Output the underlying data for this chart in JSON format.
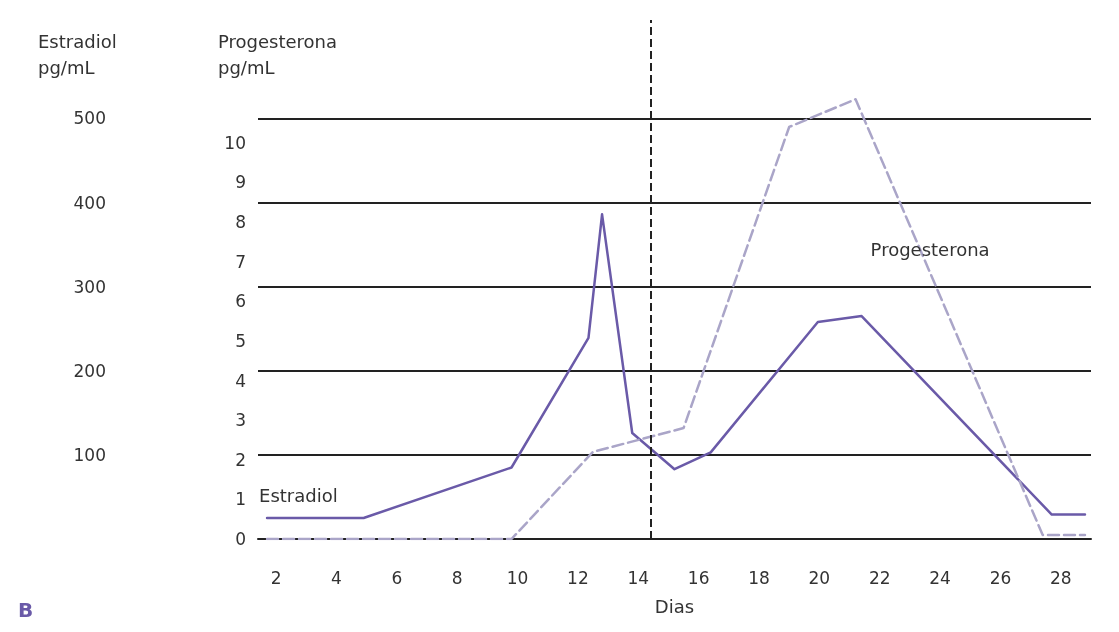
{
  "chart_data": {
    "type": "line",
    "xlabel": "Dias",
    "ylabel": "Estradiol\npg/mL",
    "y2label": "Progesterona\npg/mL",
    "xlim": [
      1.4,
      29
    ],
    "xticks": [
      2,
      4,
      6,
      8,
      10,
      12,
      14,
      16,
      18,
      20,
      22,
      24,
      26,
      28
    ],
    "ylim": [
      0,
      617
    ],
    "yticks": [
      100,
      200,
      300,
      400,
      500
    ],
    "y2lim": [
      0,
      13.1
    ],
    "y2ticks": [
      0,
      1,
      2,
      3,
      4,
      5,
      6,
      7,
      8,
      9,
      10
    ],
    "grid": "y",
    "marker": "none",
    "series": [
      {
        "name": "Estradiol",
        "color": "#6a5aa8",
        "line_style": "solid",
        "x": [
          1.7,
          4.9,
          9.8,
          12.35,
          12.8,
          13.8,
          15.2,
          16.4,
          19.95,
          21.4,
          27.7,
          28.8
        ],
        "values": [
          25,
          25,
          85,
          239,
          386,
          126,
          83,
          103,
          258,
          265,
          29,
          29
        ]
      },
      {
        "name": "Progesterona",
        "color": "#aaa5c8",
        "line_style": "dashed",
        "axis": "y2",
        "x": [
          1.7,
          9.8,
          12.5,
          15.5,
          19.0,
          21.2,
          27.4,
          28.8
        ],
        "values": [
          0,
          0,
          2.2,
          2.8,
          10.4,
          11.1,
          0.1,
          0.1
        ]
      }
    ],
    "ref_lines": [
      {
        "axis": "x",
        "value": 14.4,
        "color": "#222222",
        "line_style": "dashed"
      }
    ],
    "annotations": [
      "B"
    ]
  }
}
